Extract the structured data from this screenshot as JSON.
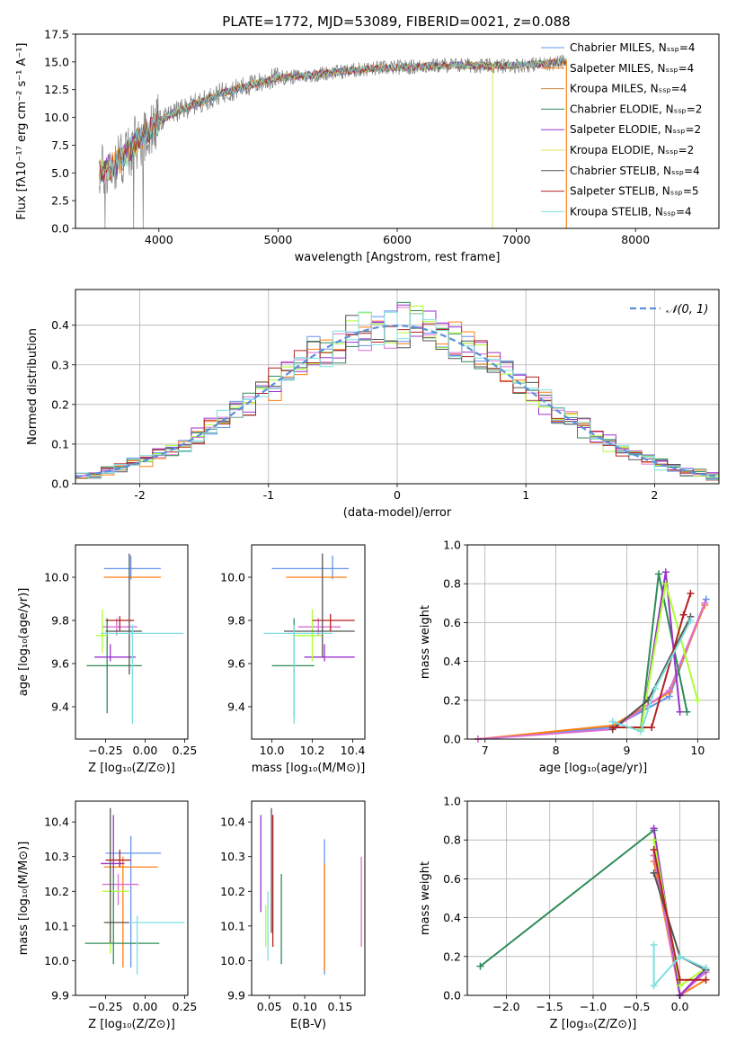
{
  "figure_title": "PLATE=1772, MJD=53089, FIBERID=0021, z=0.088",
  "series_colors": [
    "#6495ED",
    "#FF7F0E",
    "#CD853F",
    "#2E8B57",
    "#9932CC",
    "#DDE05A",
    "#555555",
    "#B22222",
    "#7FDFDF"
  ],
  "bias_colors": [
    "#6495ED",
    "#FF7F0E",
    "#DA70D6",
    "#2E8B57",
    "#9932CC",
    "#ADFF2F",
    "#555555",
    "#B22222",
    "#7FDFDF"
  ],
  "legend": [
    "Chabrier MILES, Nₛₛₚ=4",
    "Salpeter MILES, Nₛₛₚ=4",
    "Kroupa MILES, Nₛₛₚ=4",
    "Chabrier ELODIE, Nₛₛₚ=2",
    "Salpeter ELODIE, Nₛₛₚ=2",
    "Kroupa ELODIE, Nₛₛₚ=2",
    "Chabrier STELIB, Nₛₛₚ=4",
    "Salpeter STELIB, Nₛₛₚ=5",
    "Kroupa STELIB, Nₛₛₚ=4"
  ],
  "chart_data": [
    {
      "id": "spectrum",
      "type": "line",
      "title": "PLATE=1772, MJD=53089, FIBERID=0021, z=0.088",
      "xlabel": "wavelength [Angstrom, rest frame]",
      "ylabel": "Flux [fλ10⁻¹⁷ erg cm⁻² s⁻¹ A⁻¹]",
      "xlim": [
        3300,
        8700
      ],
      "ylim": [
        0,
        17.5
      ],
      "xticks": [
        4000,
        5000,
        6000,
        7000,
        8000
      ],
      "yticks": [
        0.0,
        2.5,
        5.0,
        7.5,
        10.0,
        12.5,
        15.0,
        17.5
      ],
      "continuum": {
        "x": [
          3500,
          3600,
          3700,
          3800,
          3900,
          4000,
          4100,
          4200,
          4300,
          4400,
          4500,
          4600,
          4700,
          4800,
          4900,
          5000,
          5200,
          5400,
          5600,
          5800,
          6000,
          6200,
          6400,
          6600,
          6800,
          7000,
          7200,
          7400
        ],
        "y": [
          5.0,
          5.6,
          6.4,
          7.6,
          8.6,
          9.6,
          10.3,
          10.7,
          11.2,
          11.6,
          12.1,
          12.4,
          12.7,
          13.0,
          13.3,
          13.6,
          13.7,
          14.0,
          14.2,
          14.4,
          14.5,
          14.6,
          14.7,
          14.7,
          14.6,
          14.7,
          14.8,
          15.0
        ]
      },
      "legend_position": "right"
    },
    {
      "id": "residuals",
      "type": "histogram",
      "xlabel": "(data-model)/error",
      "ylabel": "Normed distribution",
      "xlim": [
        -2.5,
        2.5
      ],
      "ylim": [
        0,
        0.49
      ],
      "xticks": [
        -2,
        -1,
        0,
        1,
        2
      ],
      "yticks": [
        0.0,
        0.1,
        0.2,
        0.3,
        0.4
      ],
      "normal_curve_label": "𝒩(0, 1)",
      "normal_curve_color": "#5B8FD8",
      "legend_position": "upper right",
      "bin_width": 0.1,
      "grid": true
    },
    {
      "id": "age-vs-Z",
      "type": "errorbar",
      "xlabel": "Z [log₁₀(Z/Z⊙)]",
      "ylabel": "age  [log₁₀(age/yr)]",
      "xlim": [
        -0.44,
        0.27
      ],
      "ylim": [
        9.25,
        10.15
      ],
      "xticks": [
        -0.25,
        0.0,
        0.25
      ],
      "yticks": [
        9.4,
        9.6,
        9.8,
        10.0
      ],
      "xticklabels": [
        "−0.25",
        "0.00",
        "0.25"
      ],
      "yticklabels": [
        "9.4",
        "9.6",
        "9.8",
        "10.0"
      ],
      "points": [
        {
          "x": -0.09,
          "y": 10.04,
          "xerr": [
            0.17,
            0.19
          ],
          "yerr": [
            0.05,
            0.06
          ]
        },
        {
          "x": -0.16,
          "y": 10.0,
          "xerr": [
            0.1,
            0.26
          ],
          "yerr": [
            0.0,
            0.0
          ]
        },
        {
          "x": -0.18,
          "y": 9.77,
          "xerr": [
            0.09,
            0.13
          ],
          "yerr": [
            0.04,
            0.04
          ]
        },
        {
          "x": -0.24,
          "y": 9.59,
          "xerr": [
            0.13,
            0.22
          ],
          "yerr": [
            0.22,
            0.22
          ]
        },
        {
          "x": -0.22,
          "y": 9.63,
          "xerr": [
            0.1,
            0.16
          ],
          "yerr": [
            0.02,
            0.06
          ]
        },
        {
          "x": -0.27,
          "y": 9.73,
          "xerr": [
            0.04,
            0.03
          ],
          "yerr": [
            0.08,
            0.12
          ]
        },
        {
          "x": -0.1,
          "y": 9.75,
          "xerr": [
            0.15,
            0.08
          ],
          "yerr": [
            0.2,
            0.36
          ]
        },
        {
          "x": -0.16,
          "y": 9.8,
          "xerr": [
            0.09,
            0.09
          ],
          "yerr": [
            0.05,
            0.02
          ]
        },
        {
          "x": -0.08,
          "y": 9.74,
          "xerr": [
            0.2,
            0.32
          ],
          "yerr": [
            0.42,
            0.04
          ]
        }
      ]
    },
    {
      "id": "age-vs-mass",
      "type": "errorbar",
      "xlabel": "mass [log₁₀(M/M⊙)]",
      "ylabel": "",
      "xlim": [
        9.9,
        10.46
      ],
      "ylim": [
        9.25,
        10.15
      ],
      "xticks": [
        10.0,
        10.2,
        10.4
      ],
      "yticks": [
        9.4,
        9.6,
        9.8,
        10.0
      ],
      "xticklabels": [
        "10.0",
        "10.2",
        "10.4"
      ],
      "yticklabels": [
        "9.4",
        "9.6",
        "9.8",
        "10.0"
      ],
      "points": [
        {
          "x": 10.3,
          "y": 10.04,
          "xerr": [
            0.3,
            0.08
          ],
          "yerr": [
            0.05,
            0.06
          ]
        },
        {
          "x": 10.27,
          "y": 10.0,
          "xerr": [
            0.2,
            0.1
          ],
          "yerr": [
            0.0,
            0.0
          ]
        },
        {
          "x": 10.23,
          "y": 9.77,
          "xerr": [
            0.1,
            0.11
          ],
          "yerr": [
            0.04,
            0.04
          ]
        },
        {
          "x": 10.11,
          "y": 9.59,
          "xerr": [
            0.11,
            0.1
          ],
          "yerr": [
            0.24,
            0.22
          ]
        },
        {
          "x": 10.26,
          "y": 9.63,
          "xerr": [
            0.1,
            0.15
          ],
          "yerr": [
            0.02,
            0.06
          ]
        },
        {
          "x": 10.2,
          "y": 9.73,
          "xerr": [
            0.09,
            0.05
          ],
          "yerr": [
            0.12,
            0.12
          ]
        },
        {
          "x": 10.25,
          "y": 9.75,
          "xerr": [
            0.19,
            0.16
          ],
          "yerr": [
            0.12,
            0.36
          ]
        },
        {
          "x": 10.29,
          "y": 9.8,
          "xerr": [
            0.09,
            0.12
          ],
          "yerr": [
            0.05,
            0.03
          ]
        },
        {
          "x": 10.11,
          "y": 9.74,
          "xerr": [
            0.15,
            0.19
          ],
          "yerr": [
            0.42,
            0.04
          ]
        }
      ]
    },
    {
      "id": "mass-weight-vs-age",
      "type": "line",
      "xlabel": "age  [log₁₀(age/yr)]",
      "ylabel": "mass weight",
      "xlim": [
        6.75,
        10.3
      ],
      "ylim": [
        0,
        1.0
      ],
      "xticks": [
        7,
        8,
        9,
        10
      ],
      "yticks": [
        0.0,
        0.2,
        0.4,
        0.6,
        0.8,
        1.0
      ],
      "xticklabels": [
        "7",
        "8",
        "9",
        "10"
      ],
      "yticklabels": [
        "0.0",
        "0.2",
        "0.4",
        "0.6",
        "0.8",
        "1.0"
      ],
      "series": [
        {
          "x": [
            6.9,
            8.8,
            9.6,
            10.12
          ],
          "y": [
            0.0,
            0.06,
            0.22,
            0.72
          ]
        },
        {
          "x": [
            6.9,
            8.8,
            9.6,
            10.1
          ],
          "y": [
            0.0,
            0.07,
            0.24,
            0.69
          ]
        },
        {
          "x": [
            6.9,
            8.8,
            9.6,
            10.1
          ],
          "y": [
            0.0,
            0.05,
            0.25,
            0.7
          ]
        },
        {
          "x": [
            9.2,
            9.45,
            9.85
          ],
          "y": [
            0.06,
            0.85,
            0.14
          ]
        },
        {
          "x": [
            9.2,
            9.55,
            9.75
          ],
          "y": [
            0.05,
            0.86,
            0.14
          ]
        },
        {
          "x": [
            9.2,
            9.55,
            10.0
          ],
          "y": [
            0.05,
            0.8,
            0.2
          ]
        },
        {
          "x": [
            8.8,
            9.3,
            9.9
          ],
          "y": [
            0.05,
            0.2,
            0.63
          ]
        },
        {
          "x": [
            8.8,
            9.35,
            9.8,
            9.9
          ],
          "y": [
            0.06,
            0.06,
            0.64,
            0.75
          ]
        },
        {
          "x": [
            8.8,
            9.2,
            9.4,
            9.9
          ],
          "y": [
            0.09,
            0.04,
            0.26,
            0.61
          ]
        }
      ]
    },
    {
      "id": "mass-vs-Z",
      "type": "errorbar",
      "xlabel": "Z [log₁₀(Z/Z⊙)]",
      "ylabel": "mass [log₁₀(M/M⊙)]",
      "xlim": [
        -0.44,
        0.27
      ],
      "ylim": [
        9.9,
        10.46
      ],
      "xticks": [
        -0.25,
        0.0,
        0.25
      ],
      "yticks": [
        9.9,
        10.0,
        10.1,
        10.2,
        10.3,
        10.4
      ],
      "xticklabels": [
        "−0.25",
        "0.00",
        "0.25"
      ],
      "yticklabels": [
        "9.9",
        "10.0",
        "10.1",
        "10.2",
        "10.3",
        "10.4"
      ],
      "points": [
        {
          "x": -0.09,
          "y": 10.31,
          "xerr": [
            0.16,
            0.19
          ],
          "yerr": [
            0.33,
            0.05
          ]
        },
        {
          "x": -0.14,
          "y": 10.27,
          "xerr": [
            0.12,
            0.22
          ],
          "yerr": [
            0.29,
            0.03
          ]
        },
        {
          "x": -0.17,
          "y": 10.22,
          "xerr": [
            0.1,
            0.13
          ],
          "yerr": [
            0.06,
            0.03
          ]
        },
        {
          "x": -0.2,
          "y": 10.05,
          "xerr": [
            0.18,
            0.29
          ],
          "yerr": [
            0.06,
            0.2
          ]
        },
        {
          "x": -0.2,
          "y": 10.28,
          "xerr": [
            0.08,
            0.07
          ],
          "yerr": [
            0.03,
            0.14
          ]
        },
        {
          "x": -0.22,
          "y": 10.2,
          "xerr": [
            0.05,
            0.12
          ],
          "yerr": [
            0.18,
            0.15
          ]
        },
        {
          "x": -0.22,
          "y": 10.11,
          "xerr": [
            0.04,
            0.12
          ],
          "yerr": [
            0.06,
            0.33
          ]
        },
        {
          "x": -0.16,
          "y": 10.29,
          "xerr": [
            0.09,
            0.07
          ],
          "yerr": [
            0.02,
            0.03
          ]
        },
        {
          "x": -0.05,
          "y": 10.11,
          "xerr": [
            0.05,
            0.3
          ],
          "yerr": [
            0.15,
            0.02
          ]
        }
      ]
    },
    {
      "id": "mass-vs-EBV",
      "type": "errorbar",
      "xlabel": "E(B-V)",
      "ylabel": "",
      "xlim": [
        0.025,
        0.185
      ],
      "ylim": [
        9.9,
        10.46
      ],
      "xticks": [
        0.05,
        0.1,
        0.15
      ],
      "yticks": [
        9.9,
        10.0,
        10.1,
        10.2,
        10.3,
        10.4
      ],
      "xticklabels": [
        "0.05",
        "0.10",
        "0.15"
      ],
      "yticklabels": [
        "9.9",
        "10.0",
        "10.1",
        "10.2",
        "10.3",
        "10.4"
      ],
      "points": [
        {
          "x": 0.128,
          "y": 10.31,
          "xerr": [
            0,
            0
          ],
          "yerr": [
            0.35,
            0.04
          ]
        },
        {
          "x": 0.128,
          "y": 10.27,
          "xerr": [
            0,
            0
          ],
          "yerr": [
            0.3,
            0.01
          ]
        },
        {
          "x": 0.18,
          "y": 10.22,
          "xerr": [
            0,
            0
          ],
          "yerr": [
            0.18,
            0.08
          ]
        },
        {
          "x": 0.067,
          "y": 10.11,
          "xerr": [
            0,
            0
          ],
          "yerr": [
            0.12,
            0.14
          ]
        },
        {
          "x": 0.038,
          "y": 10.28,
          "xerr": [
            0,
            0
          ],
          "yerr": [
            0.14,
            0.14
          ]
        },
        {
          "x": 0.045,
          "y": 10.12,
          "xerr": [
            0,
            0
          ],
          "yerr": [
            0.08,
            0.04
          ]
        },
        {
          "x": 0.053,
          "y": 10.25,
          "xerr": [
            0,
            0
          ],
          "yerr": [
            0.17,
            0.19
          ]
        },
        {
          "x": 0.055,
          "y": 10.3,
          "xerr": [
            0,
            0
          ],
          "yerr": [
            0.26,
            0.12
          ]
        },
        {
          "x": 0.048,
          "y": 10.11,
          "xerr": [
            0,
            0
          ],
          "yerr": [
            0.11,
            0.09
          ]
        }
      ]
    },
    {
      "id": "mass-weight-vs-Z",
      "type": "line",
      "xlabel": "Z [log₁₀(Z/Z⊙)]",
      "ylabel": "mass weight",
      "xlim": [
        -2.45,
        0.45
      ],
      "ylim": [
        0,
        1.0
      ],
      "xticks": [
        -2.0,
        -1.5,
        -1.0,
        -0.5,
        0.0
      ],
      "yticks": [
        0.0,
        0.2,
        0.4,
        0.6,
        0.8,
        1.0
      ],
      "xticklabels": [
        "−2.0",
        "−1.5",
        "−1.0",
        "−0.5",
        "0.0"
      ],
      "yticklabels": [
        "0.0",
        "0.2",
        "0.4",
        "0.6",
        "0.8",
        "1.0"
      ],
      "series": [
        {
          "x": [
            -0.3,
            0.0,
            0.3
          ],
          "y": [
            0.72,
            0.0,
            0.13
          ]
        },
        {
          "x": [
            -0.3,
            0.0,
            0.3
          ],
          "y": [
            0.69,
            0.0,
            0.08
          ]
        },
        {
          "x": [
            -0.3,
            0.0,
            0.3
          ],
          "y": [
            0.72,
            0.0,
            0.12
          ]
        },
        {
          "x": [
            -2.3,
            -0.3
          ],
          "y": [
            0.15,
            0.85
          ]
        },
        {
          "x": [
            -0.3,
            0.0,
            0.3
          ],
          "y": [
            0.86,
            0.0,
            0.14
          ]
        },
        {
          "x": [
            -0.3,
            0.0,
            0.3
          ],
          "y": [
            0.8,
            0.05,
            0.14
          ]
        },
        {
          "x": [
            -0.3,
            0.0,
            0.3
          ],
          "y": [
            0.63,
            0.2,
            0.13
          ]
        },
        {
          "x": [
            -0.3,
            0.0,
            0.3
          ],
          "y": [
            0.75,
            0.08,
            0.08
          ]
        },
        {
          "x": [
            -0.3,
            -0.3,
            0.0,
            0.3
          ],
          "y": [
            0.26,
            0.05,
            0.2,
            0.14
          ]
        }
      ]
    }
  ]
}
